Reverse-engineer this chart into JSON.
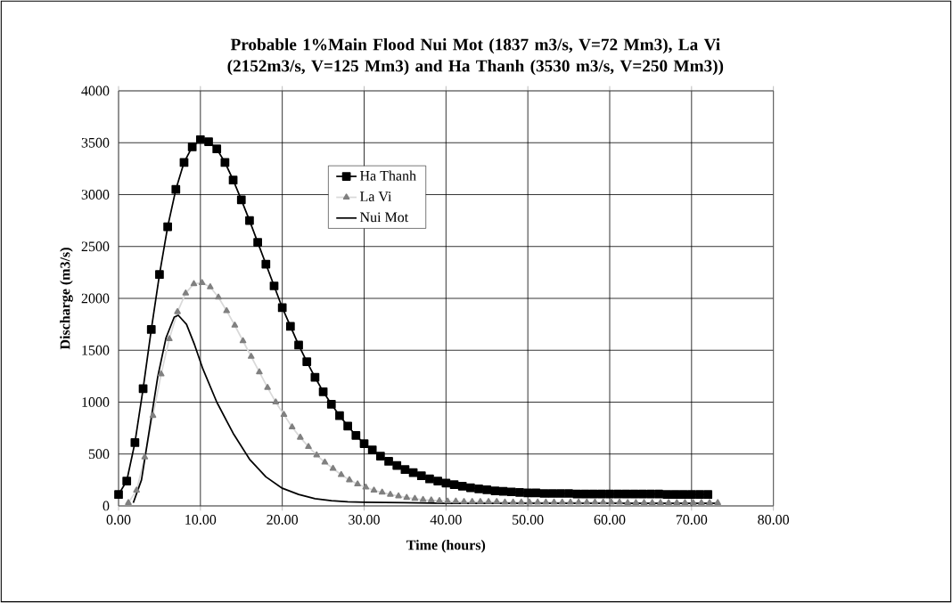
{
  "chart_data": {
    "type": "line",
    "title": "Probable 1%Main Flood Nui Mot (1837 m3/s, V=72 Mm3), La Vi (2152m3/s, V=125 Mm3) and Ha Thanh (3530 m3/s, V=250 Mm3))",
    "xlabel": "Time (hours)",
    "ylabel": "Discharge (m3/s)",
    "xlim": [
      0,
      80
    ],
    "ylim": [
      0,
      4000
    ],
    "xticks": [
      {
        "value": 0,
        "label": "0.00"
      },
      {
        "value": 10,
        "label": "10.00"
      },
      {
        "value": 20,
        "label": "20.00"
      },
      {
        "value": 30,
        "label": "30.00"
      },
      {
        "value": 40,
        "label": "40.00"
      },
      {
        "value": 50,
        "label": "50.00"
      },
      {
        "value": 60,
        "label": "60.00"
      },
      {
        "value": 70,
        "label": "70.00"
      },
      {
        "value": 80,
        "label": "80.00"
      }
    ],
    "yticks": [
      0,
      500,
      1000,
      1500,
      2000,
      2500,
      3000,
      3500,
      4000
    ],
    "grid": true,
    "legend": "top",
    "series": [
      {
        "name": "Ha Thanh",
        "color": "#000000",
        "marker": "square",
        "x": [
          0,
          1,
          2,
          3,
          4,
          5,
          6,
          7,
          8,
          9,
          10,
          11,
          12,
          13,
          14,
          15,
          16,
          17,
          18,
          19,
          20,
          21,
          22,
          23,
          24,
          25,
          26,
          27,
          28,
          29,
          30,
          31,
          32,
          33,
          34,
          35,
          36,
          37,
          38,
          39,
          40,
          41,
          42,
          43,
          44,
          45,
          46,
          47,
          48,
          49,
          50,
          51,
          52,
          53,
          54,
          55,
          56,
          57,
          58,
          59,
          60,
          61,
          62,
          63,
          64,
          65,
          66,
          67,
          68,
          69,
          70,
          71,
          72
        ],
        "values": [
          110,
          240,
          610,
          1130,
          1700,
          2230,
          2690,
          3050,
          3310,
          3460,
          3530,
          3510,
          3440,
          3310,
          3140,
          2950,
          2750,
          2540,
          2330,
          2120,
          1910,
          1730,
          1550,
          1390,
          1240,
          1100,
          980,
          870,
          770,
          680,
          600,
          540,
          480,
          430,
          390,
          350,
          320,
          290,
          260,
          240,
          220,
          205,
          190,
          175,
          165,
          155,
          145,
          140,
          135,
          130,
          125,
          125,
          120,
          120,
          120,
          120,
          115,
          115,
          115,
          115,
          115,
          115,
          115,
          115,
          115,
          115,
          115,
          110,
          110,
          110,
          110,
          110,
          110
        ]
      },
      {
        "name": "La Vi",
        "color": "#808080",
        "marker": "triangle",
        "x": [
          1.2,
          2.2,
          3.2,
          4.2,
          5.2,
          6.2,
          7.2,
          8.2,
          9.2,
          10.2,
          11.2,
          12.2,
          13.2,
          14.2,
          15.2,
          16.2,
          17.2,
          18.2,
          19.2,
          20.2,
          21.2,
          22.2,
          23.2,
          24.2,
          25.2,
          26.2,
          27.2,
          28.2,
          29.2,
          30.2,
          31.2,
          32.2,
          33.2,
          34.2,
          35.2,
          36.2,
          37.2,
          38.2,
          39.2,
          40.2,
          41.2,
          42.2,
          43.2,
          44.2,
          45.2,
          46.2,
          47.2,
          48.2,
          49.2,
          50.2,
          51.2,
          52.2,
          53.2,
          54.2,
          55.2,
          56.2,
          57.2,
          58.2,
          59.2,
          60.2,
          61.2,
          62.2,
          63.2,
          64.2,
          65.2,
          66.2,
          67.2,
          68.2,
          69.2,
          70.2,
          71.2,
          72.2,
          73.2
        ],
        "values": [
          30,
          150,
          470,
          870,
          1270,
          1610,
          1870,
          2050,
          2140,
          2150,
          2110,
          2010,
          1880,
          1740,
          1590,
          1440,
          1290,
          1140,
          1000,
          880,
          760,
          660,
          570,
          490,
          420,
          360,
          300,
          250,
          210,
          180,
          150,
          130,
          110,
          95,
          80,
          70,
          60,
          55,
          50,
          45,
          45,
          40,
          40,
          40,
          40,
          40,
          35,
          35,
          35,
          35,
          35,
          35,
          35,
          35,
          35,
          35,
          35,
          35,
          35,
          35,
          35,
          30,
          30,
          30,
          30,
          30,
          30,
          30,
          30,
          30,
          30,
          30,
          30
        ]
      },
      {
        "name": "Nui Mot",
        "color": "#000000",
        "marker": "none",
        "x": [
          1.8,
          2.8,
          3.8,
          4.8,
          5.8,
          6.8,
          7.3,
          8.3,
          9.3,
          10.3,
          12,
          14,
          16,
          18,
          20,
          22,
          24,
          26,
          28,
          30,
          35,
          40,
          50,
          60,
          73
        ],
        "values": [
          30,
          250,
          750,
          1250,
          1620,
          1820,
          1837,
          1750,
          1550,
          1320,
          1000,
          700,
          450,
          280,
          170,
          110,
          70,
          50,
          40,
          35,
          30,
          25,
          25,
          25,
          25
        ]
      }
    ]
  }
}
